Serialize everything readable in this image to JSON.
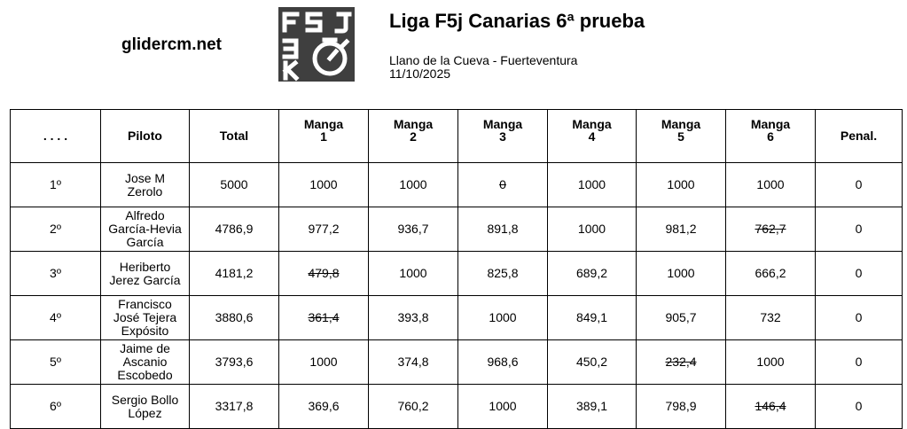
{
  "site": "glidercm.net",
  "title": "Liga F5j Canarias 6ª prueba",
  "location": "Llano de la Cueva - Fuerteventura",
  "date": "11/10/2025",
  "logo": {
    "icon": "stopwatch-icon",
    "text": "F5J 3K",
    "bg": "#3f3f3f",
    "fg": "#ffffff"
  },
  "headers": {
    "pos": ". . . .",
    "pilot": "Piloto",
    "total": "Total",
    "rounds": [
      {
        "label": "Manga",
        "num": "1"
      },
      {
        "label": "Manga",
        "num": "2"
      },
      {
        "label": "Manga",
        "num": "3"
      },
      {
        "label": "Manga",
        "num": "4"
      },
      {
        "label": "Manga",
        "num": "5"
      },
      {
        "label": "Manga",
        "num": "6"
      }
    ],
    "penalty": "Penal."
  },
  "rows": [
    {
      "pos": "1º",
      "pilot": [
        "Jose M",
        "Zerolo"
      ],
      "total": "5000",
      "scores": [
        {
          "v": "1000",
          "d": false
        },
        {
          "v": "1000",
          "d": false
        },
        {
          "v": "0",
          "d": true
        },
        {
          "v": "1000",
          "d": false
        },
        {
          "v": "1000",
          "d": false
        },
        {
          "v": "1000",
          "d": false
        }
      ],
      "penalty": "0"
    },
    {
      "pos": "2º",
      "pilot": [
        "Alfredo",
        "García-Hevia",
        "García"
      ],
      "total": "4786,9",
      "scores": [
        {
          "v": "977,2",
          "d": false
        },
        {
          "v": "936,7",
          "d": false
        },
        {
          "v": "891,8",
          "d": false
        },
        {
          "v": "1000",
          "d": false
        },
        {
          "v": "981,2",
          "d": false
        },
        {
          "v": "762,7",
          "d": true
        }
      ],
      "penalty": "0"
    },
    {
      "pos": "3º",
      "pilot": [
        "Heriberto",
        "Jerez García"
      ],
      "total": "4181,2",
      "scores": [
        {
          "v": "479,8",
          "d": true
        },
        {
          "v": "1000",
          "d": false
        },
        {
          "v": "825,8",
          "d": false
        },
        {
          "v": "689,2",
          "d": false
        },
        {
          "v": "1000",
          "d": false
        },
        {
          "v": "666,2",
          "d": false
        }
      ],
      "penalty": "0"
    },
    {
      "pos": "4º",
      "pilot": [
        "Francisco",
        "José Tejera",
        "Expósito"
      ],
      "total": "3880,6",
      "scores": [
        {
          "v": "361,4",
          "d": true
        },
        {
          "v": "393,8",
          "d": false
        },
        {
          "v": "1000",
          "d": false
        },
        {
          "v": "849,1",
          "d": false
        },
        {
          "v": "905,7",
          "d": false
        },
        {
          "v": "732",
          "d": false
        }
      ],
      "penalty": "0"
    },
    {
      "pos": "5º",
      "pilot": [
        "Jaime de",
        "Ascanio",
        "Escobedo"
      ],
      "total": "3793,6",
      "scores": [
        {
          "v": "1000",
          "d": false
        },
        {
          "v": "374,8",
          "d": false
        },
        {
          "v": "968,6",
          "d": false
        },
        {
          "v": "450,2",
          "d": false
        },
        {
          "v": "232,4",
          "d": true
        },
        {
          "v": "1000",
          "d": false
        }
      ],
      "penalty": "0"
    },
    {
      "pos": "6º",
      "pilot": [
        "Sergio Bollo",
        "López"
      ],
      "total": "3317,8",
      "scores": [
        {
          "v": "369,6",
          "d": false
        },
        {
          "v": "760,2",
          "d": false
        },
        {
          "v": "1000",
          "d": false
        },
        {
          "v": "389,1",
          "d": false
        },
        {
          "v": "798,9",
          "d": false
        },
        {
          "v": "146,4",
          "d": true
        }
      ],
      "penalty": "0"
    }
  ]
}
